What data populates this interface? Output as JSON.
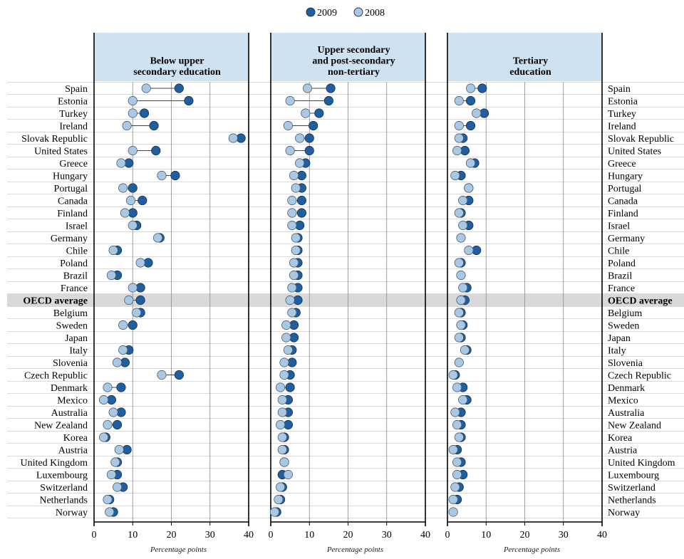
{
  "legend": {
    "entries": [
      {
        "label": "2009",
        "color": "#1f5fa0"
      },
      {
        "label": "2008",
        "color": "#a9c8e4"
      }
    ]
  },
  "colors": {
    "c2009": "#1f5fa0",
    "c2008": "#a9c8e4",
    "panel_header": "#cfe2f1",
    "highlight_row": "#d9d9d9"
  },
  "highlight": "OECD average",
  "chart_data": {
    "type": "dot",
    "countries": [
      "Spain",
      "Estonia",
      "Turkey",
      "Ireland",
      "Slovak Republic",
      "United States",
      "Greece",
      "Hungary",
      "Portugal",
      "Canada",
      "Finland",
      "Israel",
      "Germany",
      "Chile",
      "Poland",
      "Brazil",
      "France",
      "OECD average",
      "Belgium",
      "Sweden",
      "Japan",
      "Italy",
      "Slovenia",
      "Czech Republic",
      "Denmark",
      "Mexico",
      "Australia",
      "New Zealand",
      "Korea",
      "Austria",
      "United Kingdom",
      "Luxembourg",
      "Switzerland",
      "Netherlands",
      "Norway"
    ],
    "xlim": [
      0,
      40
    ],
    "xticks": [
      0,
      10,
      20,
      30,
      40
    ],
    "xlabel": "Percentage points",
    "panels": [
      {
        "title": [
          "Below upper",
          "secondary education"
        ],
        "v2009": [
          22.0,
          24.5,
          13.0,
          15.5,
          38.0,
          16.0,
          9.0,
          21.0,
          10.0,
          12.5,
          10.0,
          11.0,
          17.0,
          6.0,
          14.0,
          6.0,
          12.0,
          12.0,
          12.0,
          10.0,
          null,
          9.0,
          8.0,
          22.0,
          7.0,
          4.5,
          7.0,
          6.0,
          3.0,
          8.5,
          6.0,
          6.0,
          7.5,
          4.0,
          5.0
        ],
        "v2008": [
          13.5,
          10.0,
          10.0,
          8.5,
          36.0,
          10.0,
          7.0,
          17.5,
          7.5,
          9.5,
          8.0,
          10.0,
          16.5,
          5.0,
          12.0,
          4.5,
          10.0,
          9.0,
          11.0,
          7.5,
          null,
          7.5,
          6.0,
          17.5,
          3.5,
          2.5,
          5.0,
          3.5,
          2.5,
          6.5,
          5.5,
          4.5,
          6.0,
          3.5,
          4.0
        ]
      },
      {
        "title": [
          "Upper secondary",
          "and post-secondary",
          "non-tertiary"
        ],
        "v2009": [
          15.5,
          15.0,
          12.5,
          11.0,
          10.0,
          10.0,
          9.0,
          8.0,
          8.0,
          8.0,
          8.0,
          7.5,
          7.0,
          7.0,
          7.0,
          7.0,
          7.0,
          7.0,
          6.5,
          6.0,
          6.0,
          5.5,
          5.5,
          5.0,
          5.0,
          4.5,
          4.5,
          4.5,
          3.5,
          3.5,
          3.5,
          3.0,
          3.0,
          2.5,
          1.5
        ],
        "v2008": [
          9.5,
          5.0,
          9.0,
          4.5,
          7.5,
          5.0,
          7.5,
          6.0,
          6.5,
          5.5,
          5.5,
          5.5,
          6.5,
          6.5,
          6.0,
          6.0,
          5.5,
          5.0,
          5.5,
          4.0,
          4.0,
          4.5,
          3.5,
          3.5,
          2.5,
          3.0,
          3.0,
          2.5,
          3.0,
          3.0,
          3.5,
          4.5,
          2.5,
          2.0,
          1.0
        ]
      },
      {
        "title": [
          "Tertiary",
          "education"
        ],
        "v2009": [
          9.0,
          6.0,
          9.5,
          6.0,
          4.0,
          4.5,
          7.0,
          3.5,
          5.5,
          5.5,
          3.5,
          5.5,
          null,
          7.5,
          3.5,
          null,
          5.0,
          4.5,
          3.5,
          4.0,
          3.5,
          5.0,
          null,
          2.0,
          4.0,
          5.0,
          3.5,
          3.5,
          3.5,
          2.5,
          3.5,
          4.0,
          3.0,
          2.5,
          null
        ],
        "v2008": [
          6.0,
          3.0,
          7.5,
          3.0,
          3.0,
          2.5,
          6.0,
          2.0,
          5.5,
          4.0,
          3.0,
          4.0,
          3.5,
          5.5,
          3.0,
          3.5,
          4.0,
          3.5,
          3.0,
          3.5,
          3.0,
          4.5,
          3.0,
          1.5,
          2.5,
          4.0,
          2.0,
          2.5,
          3.0,
          1.5,
          2.5,
          2.5,
          2.0,
          1.5,
          1.5
        ]
      }
    ]
  }
}
